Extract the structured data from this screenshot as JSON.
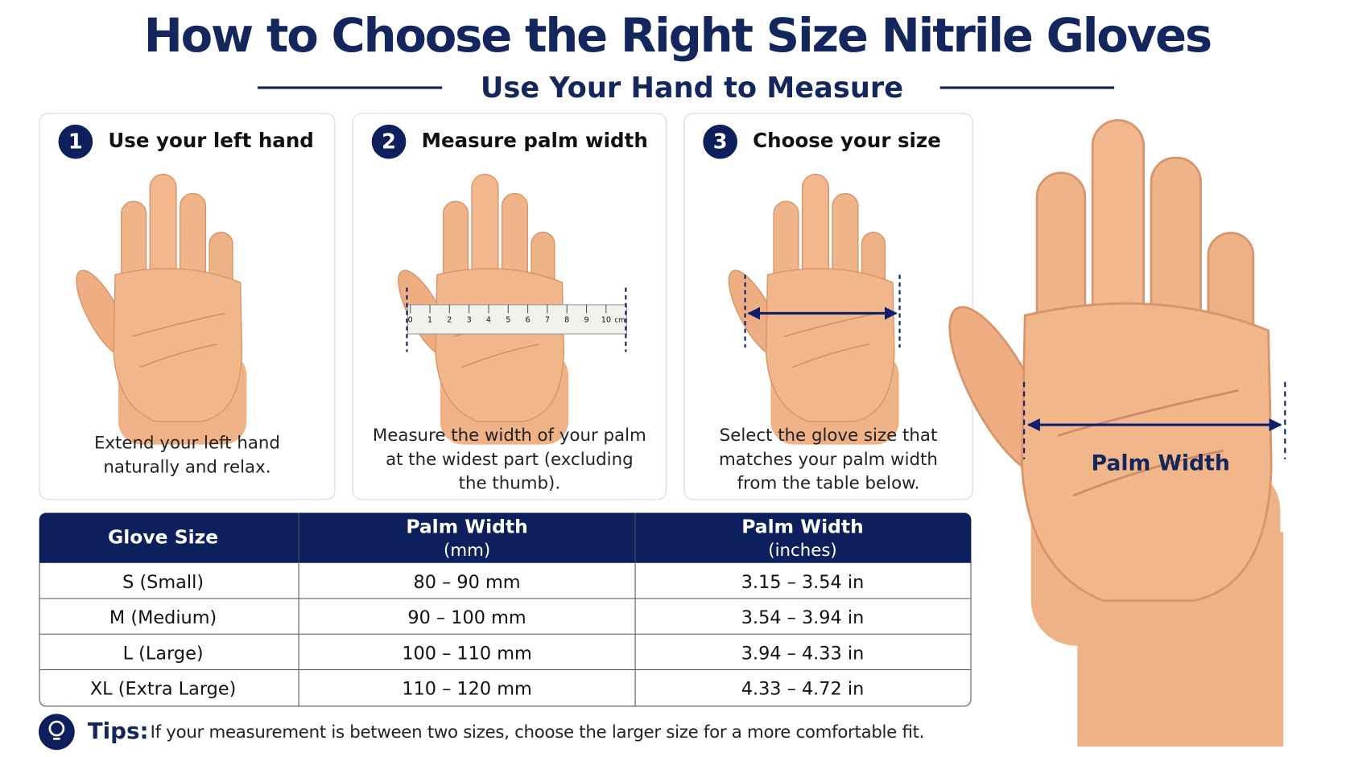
{
  "header": {
    "title": "How to Choose the Right Size Nitrile Gloves",
    "subtitle": "Use Your Hand to Measure"
  },
  "steps": [
    {
      "number": "1",
      "title": "Use your left hand",
      "description": [
        "Extend your left hand",
        "naturally and relax."
      ]
    },
    {
      "number": "2",
      "title": "Measure palm width",
      "description": [
        "Measure the width of your palm",
        "at the widest part (excluding",
        "the thumb)."
      ]
    },
    {
      "number": "3",
      "title": "Choose your size",
      "description": [
        "Select the glove size that",
        "matches your palm width",
        "from the table below."
      ]
    }
  ],
  "ruler": {
    "ticks": [
      "0",
      "1",
      "2",
      "3",
      "4",
      "5",
      "6",
      "7",
      "8",
      "9",
      "10"
    ],
    "unit": "cm"
  },
  "illustration": {
    "label": "Palm Width"
  },
  "table": {
    "header": [
      [
        "Glove Size"
      ],
      [
        "Palm Width",
        "(mm)"
      ],
      [
        "Palm Width",
        "(inches)"
      ]
    ],
    "rows": [
      [
        "S (Small)",
        "80 – 90 mm",
        "3.15 – 3.54 in"
      ],
      [
        "M (Medium)",
        "90 – 100 mm",
        "3.54 – 3.94 in"
      ],
      [
        "L (Large)",
        "100 – 110 mm",
        "3.94 – 4.33 in"
      ],
      [
        "XL (Extra Large)",
        "110 – 120 mm",
        "4.33 – 4.72 in"
      ]
    ]
  },
  "tips": {
    "label": "Tips:",
    "text": "If your measurement is between two sizes, choose the larger size for a more comfortable fit."
  }
}
